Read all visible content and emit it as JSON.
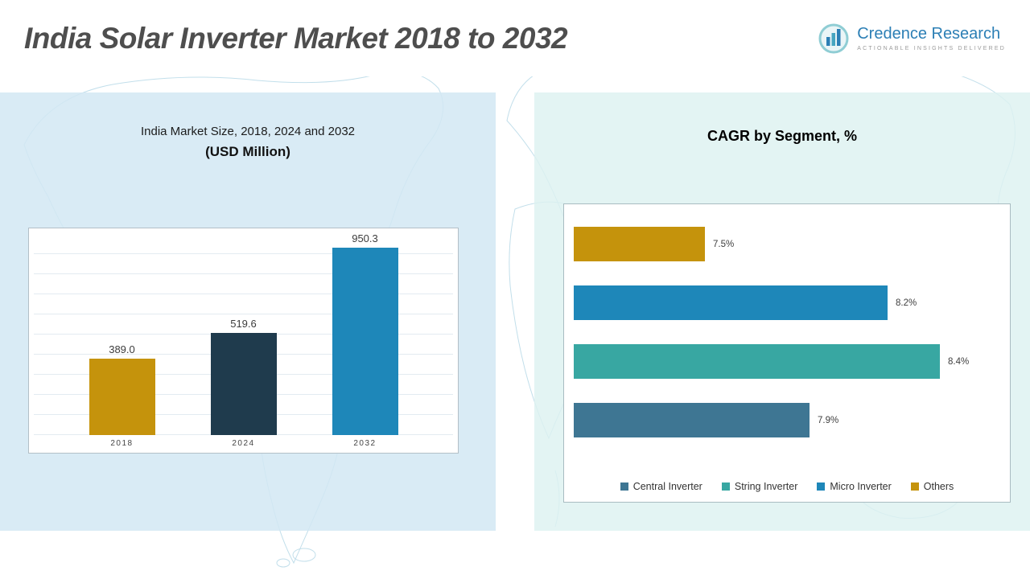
{
  "header": {
    "title": "India Solar Inverter Market 2018 to 2032",
    "logo": {
      "name": "Credence Research",
      "tagline": "Actionable Insights Delivered"
    }
  },
  "left_panel": {
    "heading_line1": "India Market Size, 2018, 2024 and 2032",
    "heading_line2": "(USD Million)"
  },
  "right_panel": {
    "heading": "CAGR by Segment, %"
  },
  "colors": {
    "brand_blue": "#2c7fb5",
    "panel_left_bg": "#d6e9f3",
    "panel_right_bg": "#e0f2f0",
    "gold": "#c5930c",
    "dark_teal": "#1f3b4d",
    "blue": "#1e87b9",
    "teal": "#38a7a2",
    "steel_blue": "#3e7693",
    "map_line": "#b7d9e7"
  },
  "chart_data": [
    {
      "type": "bar",
      "title": "India Market Size, 2018, 2024 and 2032 (USD Million)",
      "categories": [
        "2018",
        "2024",
        "2032"
      ],
      "values": [
        389.0,
        519.6,
        950.3
      ],
      "value_labels": [
        "389.0",
        "519.6",
        "950.3"
      ],
      "bar_colors": [
        "#c5930c",
        "#1f3b4d",
        "#1e87b9"
      ],
      "xlabel": "",
      "ylabel": "",
      "ylim": [
        0,
        1000
      ],
      "grid": true,
      "legend_position": "none"
    },
    {
      "type": "bar",
      "orientation": "horizontal",
      "title": "CAGR by Segment, %",
      "categories": [
        "Others",
        "Micro Inverter",
        "String Inverter",
        "Central Inverter"
      ],
      "values": [
        7.5,
        8.2,
        8.4,
        7.9
      ],
      "value_labels": [
        "7.5%",
        "8.2%",
        "8.4%",
        "7.9%"
      ],
      "bar_colors": [
        "#c5930c",
        "#1e87b9",
        "#38a7a2",
        "#3e7693"
      ],
      "xlim": [
        7.0,
        8.6
      ],
      "grid": false,
      "legend_position": "bottom",
      "legend": [
        {
          "label": "Central Inverter",
          "color": "#3e7693"
        },
        {
          "label": "String Inverter",
          "color": "#38a7a2"
        },
        {
          "label": "Micro Inverter",
          "color": "#1e87b9"
        },
        {
          "label": "Others",
          "color": "#c5930c"
        }
      ]
    }
  ]
}
